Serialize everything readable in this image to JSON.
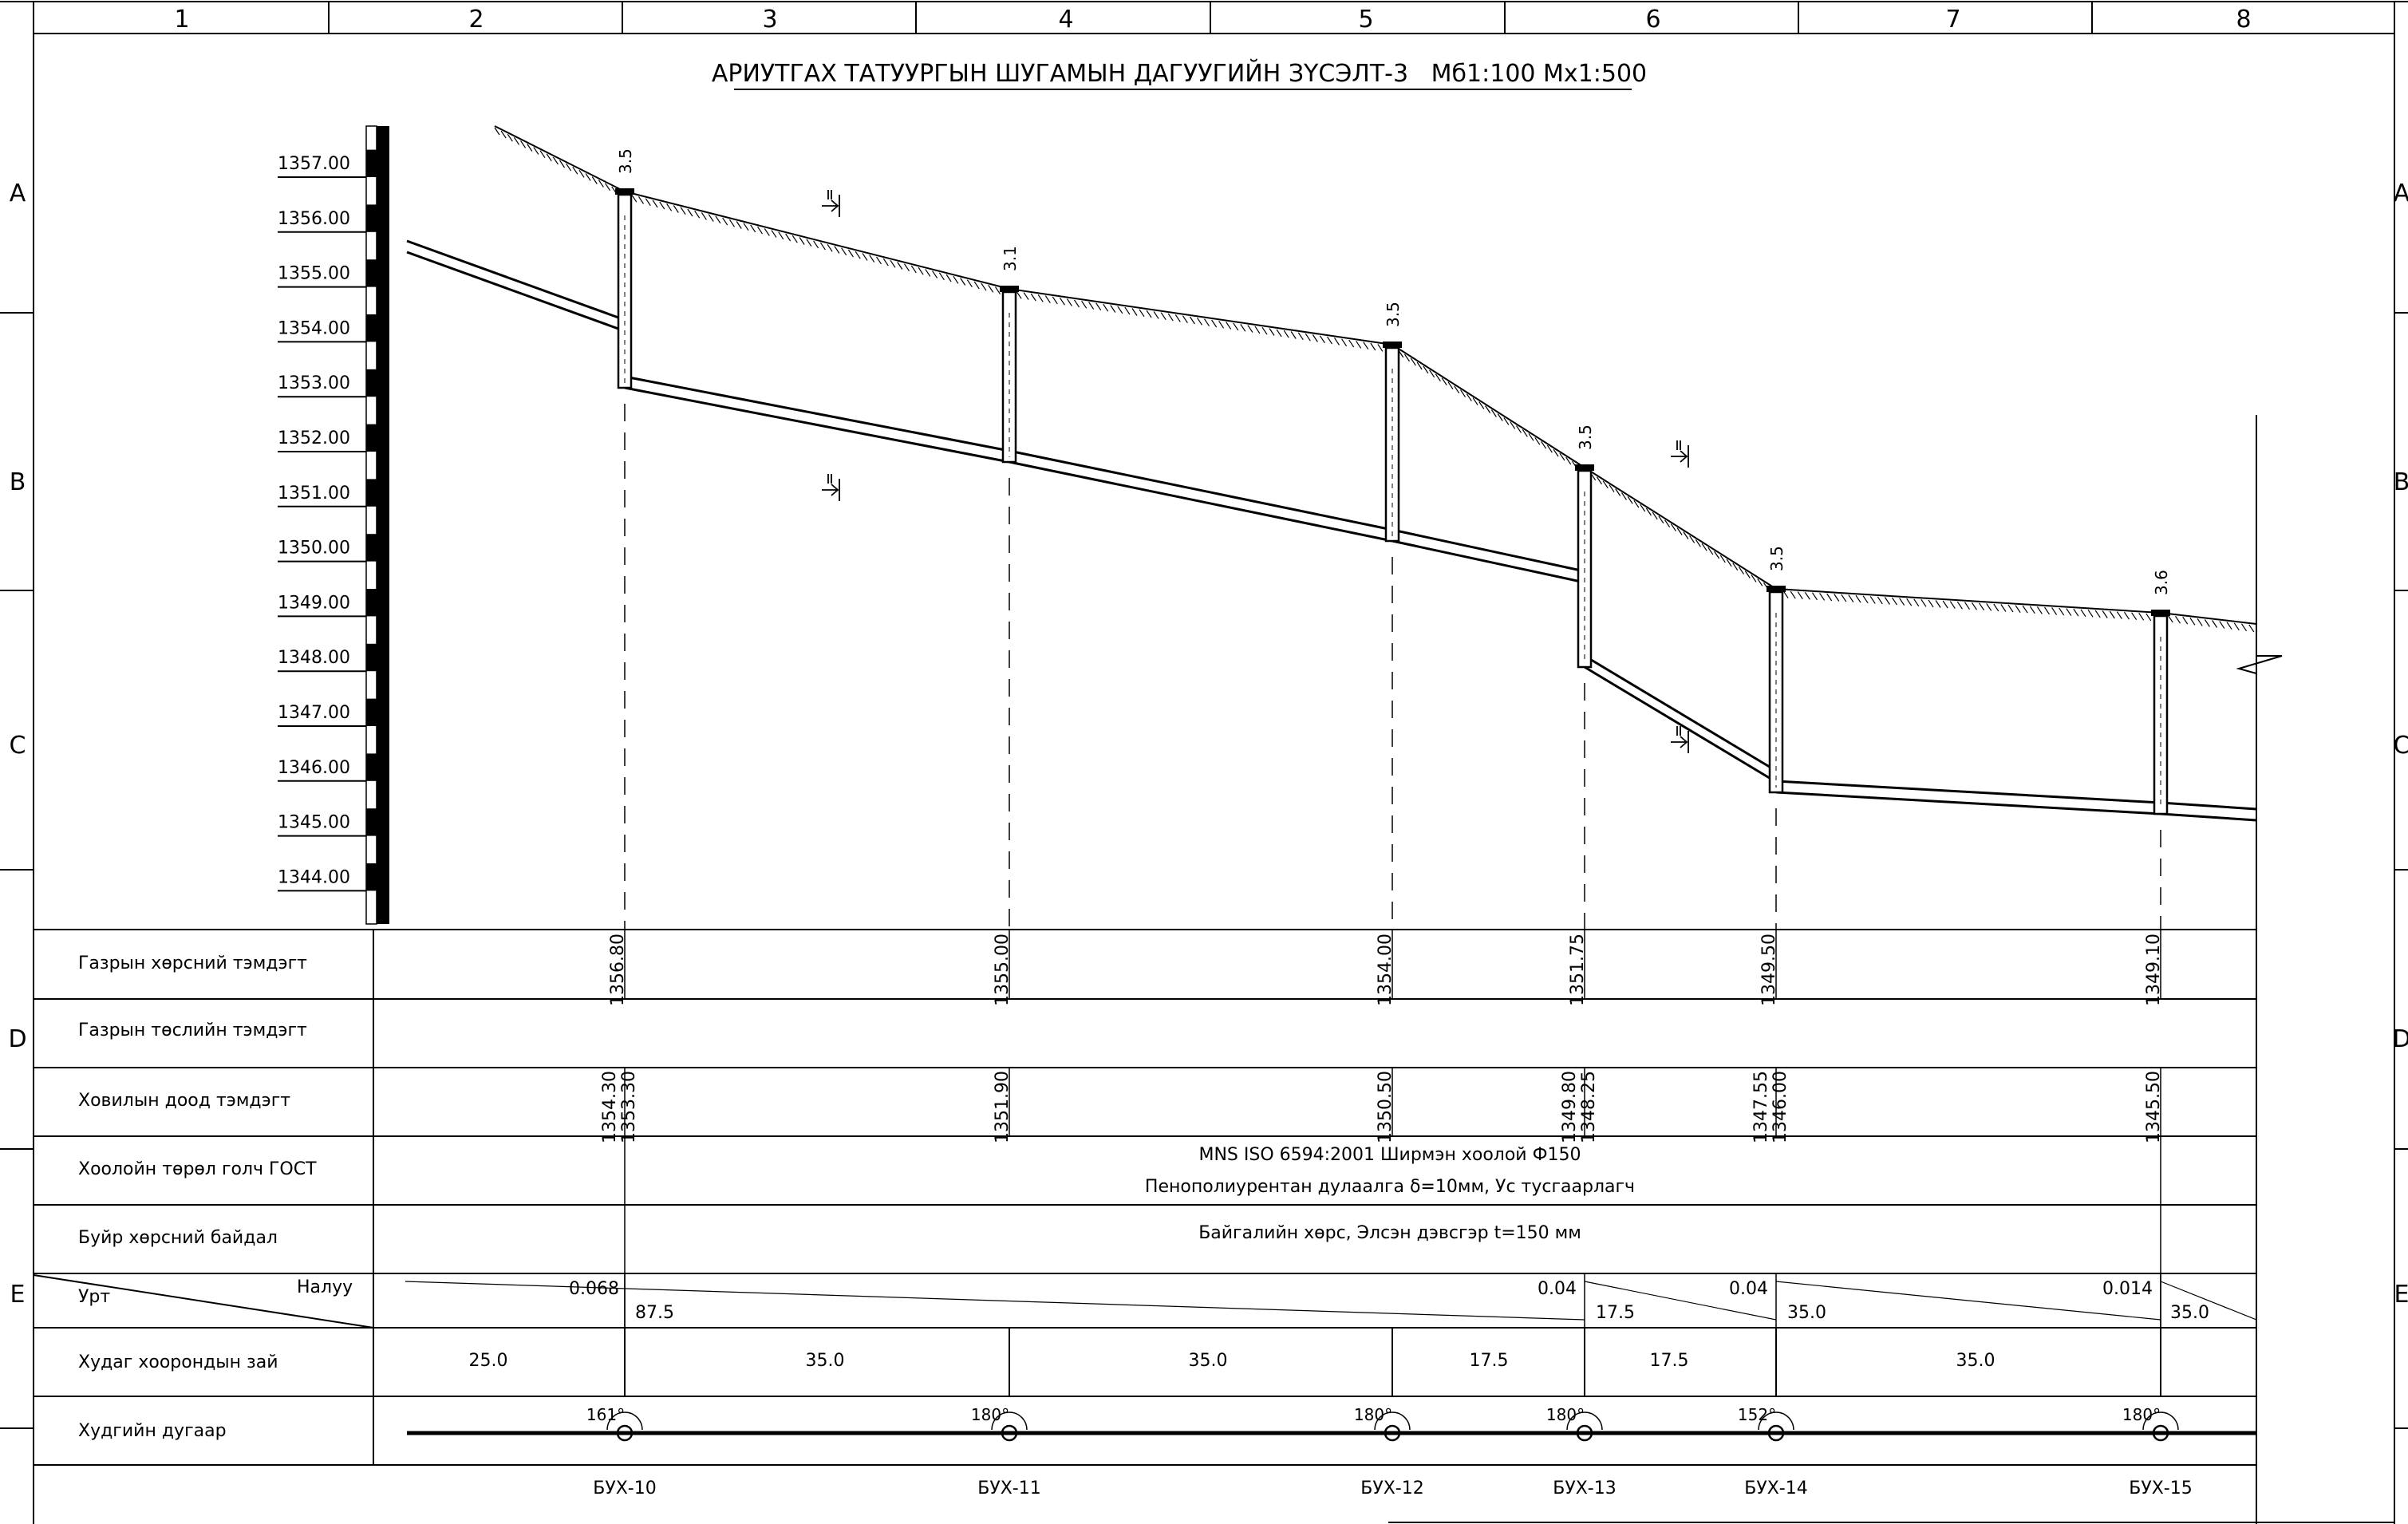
{
  "frame": {
    "columns": [
      "1",
      "2",
      "3",
      "4",
      "5",
      "6",
      "7",
      "8"
    ],
    "rows": [
      "A",
      "B",
      "C",
      "D",
      "E"
    ]
  },
  "title": "АРИУТГАХ ТАТУУРГЫН ШУГАМЫН ДАГУУГИЙН ЗҮСЭЛТ-3   Мб1:100 Мх1:500",
  "scale": {
    "labels": [
      "1357.00",
      "1356.00",
      "1355.00",
      "1354.00",
      "1353.00",
      "1352.00",
      "1351.00",
      "1350.00",
      "1349.00",
      "1348.00",
      "1347.00",
      "1346.00",
      "1345.00",
      "1344.00"
    ]
  },
  "table": {
    "rows": [
      {
        "label": "Газрын хөрсний тэмдэгт"
      },
      {
        "label": "Газрын төслийн тэмдэгт"
      },
      {
        "label": "Ховилын доод тэмдэгт"
      },
      {
        "label": "Хоолойн төрөл голч ГОСТ"
      },
      {
        "label": "Буйр хөрсний байдал"
      },
      {
        "label": "Урт",
        "label2": "Налуу"
      },
      {
        "label": "Худаг хоорондын зай"
      },
      {
        "label": "Худгийн дугаар"
      }
    ],
    "pipe_line1": "MNS ISO 6594:2001  Ширмэн хоолой Ф150",
    "pipe_line2": "Пенополиурентан дулаалга δ=10мм, Ус тусгаарлагч",
    "bed_text": "Байгалийн хөрс, Элсэн дэвсгэр t=150 мм"
  },
  "chart_data": {
    "type": "profile",
    "title": "АРИУТГАХ ТАТУУРГЫН ШУГАМЫН ДАГУУГИЙН ЗҮСЭЛТ-3   Мб1:100 Мх1:500",
    "vertical_scale": "1:100",
    "horizontal_scale": "1:500",
    "elevation_range": [
      1344.0,
      1357.0
    ],
    "wells": [
      {
        "name": "БУХ-10",
        "ground": "1356.80",
        "invert": [
          "1354.30",
          "1353.30"
        ],
        "depth_label": "3.5",
        "angle": "161°"
      },
      {
        "name": "БУХ-11",
        "ground": "1355.00",
        "invert": [
          "1351.90"
        ],
        "depth_label": "3.1",
        "angle": "180°"
      },
      {
        "name": "БУХ-12",
        "ground": "1354.00",
        "invert": [
          "1350.50"
        ],
        "depth_label": "3.5",
        "angle": "180°"
      },
      {
        "name": "БУХ-13",
        "ground": "1351.75",
        "invert": [
          "1349.80",
          "1348.25"
        ],
        "depth_label": "3.5",
        "angle": "180°"
      },
      {
        "name": "БУХ-14",
        "ground": "1349.50",
        "invert": [
          "1347.55",
          "1346.00"
        ],
        "depth_label": "3.5",
        "angle": "152°"
      },
      {
        "name": "БУХ-15",
        "ground": "1349.10",
        "invert": [
          "1345.50"
        ],
        "depth_label": "3.6",
        "angle": "180°"
      }
    ],
    "segments": [
      {
        "slope": "0.068",
        "length": "87.5"
      },
      {
        "slope": "0.04",
        "length": "17.5"
      },
      {
        "slope": "0.04",
        "length": "35.0"
      },
      {
        "slope": "0.014",
        "length": "35.0"
      }
    ],
    "distances": [
      "25.0",
      "35.0",
      "35.0",
      "17.5",
      "17.5",
      "35.0"
    ]
  }
}
